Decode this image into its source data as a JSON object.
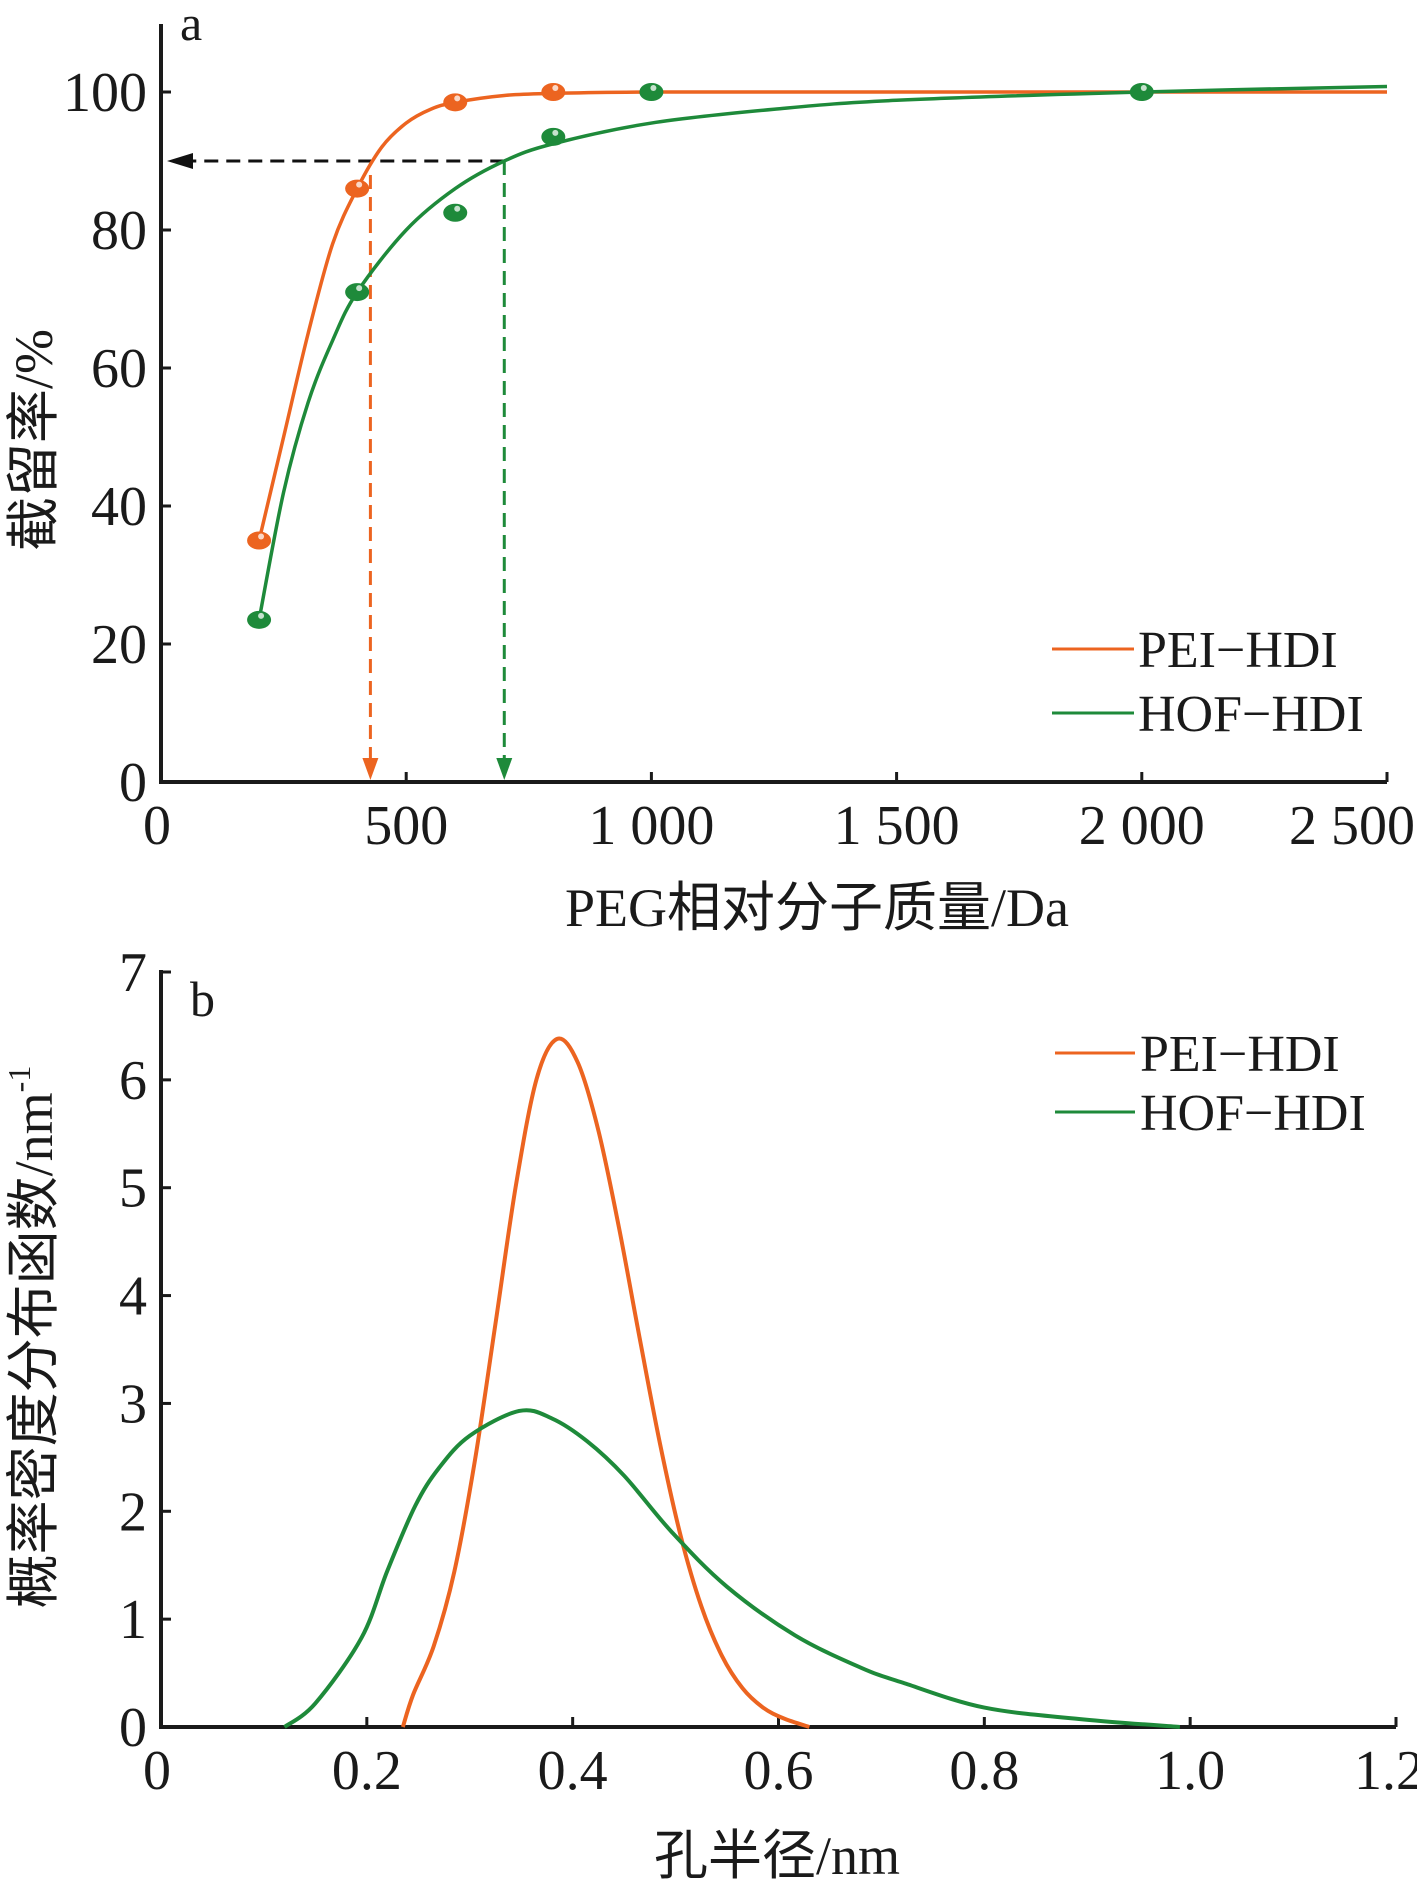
{
  "colors": {
    "pei": "#ec6420",
    "hof": "#1e8a3a",
    "axis": "#1a1a1a"
  },
  "chart_data": [
    {
      "type": "scatter",
      "panel_label": "a",
      "xlabel": "PEG相对分子质量/Da",
      "ylabel": "截留率/%",
      "xlim": [
        0,
        2500
      ],
      "ylim": [
        0,
        100
      ],
      "xticks": [
        0,
        500,
        1000,
        1500,
        2000,
        2500
      ],
      "xtick_labels": [
        "0",
        "500",
        "1 000",
        "1 500",
        "2 000",
        "2 500"
      ],
      "yticks": [
        0,
        20,
        40,
        60,
        80,
        100
      ],
      "ytick_labels": [
        "0",
        "20",
        "40",
        "60",
        "80",
        "100"
      ],
      "legend_position": "bottom-right",
      "series": [
        {
          "name": "PEI−HDI",
          "color_key": "pei",
          "points": [
            [
              200,
              35
            ],
            [
              400,
              86
            ],
            [
              600,
              98.5
            ],
            [
              800,
              100
            ]
          ],
          "fit": [
            [
              200,
              35
            ],
            [
              250,
              50
            ],
            [
              300,
              65
            ],
            [
              350,
              78
            ],
            [
              400,
              86
            ],
            [
              450,
              92
            ],
            [
              500,
              95.5
            ],
            [
              550,
              97.5
            ],
            [
              600,
              98.5
            ],
            [
              700,
              99.5
            ],
            [
              800,
              99.8
            ],
            [
              1000,
              100
            ],
            [
              1500,
              100
            ],
            [
              2000,
              100
            ],
            [
              2500,
              100
            ]
          ]
        },
        {
          "name": "HOF−HDI",
          "color_key": "hof",
          "points": [
            [
              200,
              23.5
            ],
            [
              400,
              71
            ],
            [
              600,
              82.5
            ],
            [
              800,
              93.5
            ],
            [
              1000,
              100
            ],
            [
              2000,
              100
            ]
          ],
          "fit": [
            [
              200,
              23.5
            ],
            [
              250,
              42
            ],
            [
              300,
              55
            ],
            [
              350,
              64
            ],
            [
              400,
              71
            ],
            [
              500,
              80
            ],
            [
              600,
              86
            ],
            [
              700,
              90
            ],
            [
              800,
              92.5
            ],
            [
              1000,
              95.5
            ],
            [
              1250,
              97.5
            ],
            [
              1500,
              98.8
            ],
            [
              2000,
              100
            ],
            [
              2500,
              100.8
            ]
          ]
        }
      ],
      "annotations": {
        "retention_level": 90,
        "pei_cutoff": 427,
        "hof_cutoff": 700
      }
    },
    {
      "type": "line",
      "panel_label": "b",
      "xlabel": "孔半径/nm",
      "ylabel": "概率密度分布函数/nm",
      "ylabel_superscript": "-1",
      "xlim": [
        0,
        1.2
      ],
      "ylim": [
        0,
        7
      ],
      "xticks": [
        0,
        0.2,
        0.4,
        0.6,
        0.8,
        1.0,
        1.2
      ],
      "xtick_labels": [
        "0",
        "0.2",
        "0.4",
        "0.6",
        "0.8",
        "1.0",
        "1.2"
      ],
      "yticks": [
        0,
        1,
        2,
        3,
        4,
        5,
        6,
        7
      ],
      "ytick_labels": [
        "0",
        "1",
        "2",
        "3",
        "4",
        "5",
        "6",
        "7"
      ],
      "legend_position": "top-right",
      "series": [
        {
          "name": "PEI−HDI",
          "color_key": "pei",
          "values": [
            [
              0.235,
              0
            ],
            [
              0.245,
              0.3
            ],
            [
              0.265,
              0.75
            ],
            [
              0.285,
              1.44
            ],
            [
              0.305,
              2.47
            ],
            [
              0.325,
              3.74
            ],
            [
              0.345,
              5.03
            ],
            [
              0.365,
              6.01
            ],
            [
              0.385,
              6.38
            ],
            [
              0.405,
              6.16
            ],
            [
              0.425,
              5.53
            ],
            [
              0.445,
              4.63
            ],
            [
              0.465,
              3.61
            ],
            [
              0.485,
              2.62
            ],
            [
              0.505,
              1.77
            ],
            [
              0.525,
              1.12
            ],
            [
              0.545,
              0.66
            ],
            [
              0.565,
              0.36
            ],
            [
              0.585,
              0.18
            ],
            [
              0.605,
              0.08
            ],
            [
              0.63,
              0
            ]
          ]
        },
        {
          "name": "HOF−HDI",
          "color_key": "hof",
          "values": [
            [
              0.12,
              0
            ],
            [
              0.15,
              0.22
            ],
            [
              0.195,
              0.83
            ],
            [
              0.22,
              1.45
            ],
            [
              0.247,
              2.05
            ],
            [
              0.27,
              2.4
            ],
            [
              0.3,
              2.7
            ],
            [
              0.348,
              2.93
            ],
            [
              0.38,
              2.86
            ],
            [
              0.414,
              2.65
            ],
            [
              0.45,
              2.33
            ],
            [
              0.497,
              1.8
            ],
            [
              0.55,
              1.3
            ],
            [
              0.616,
              0.85
            ],
            [
              0.68,
              0.55
            ],
            [
              0.721,
              0.41
            ],
            [
              0.8,
              0.18
            ],
            [
              0.897,
              0.07
            ],
            [
              0.99,
              0
            ]
          ]
        }
      ]
    }
  ]
}
